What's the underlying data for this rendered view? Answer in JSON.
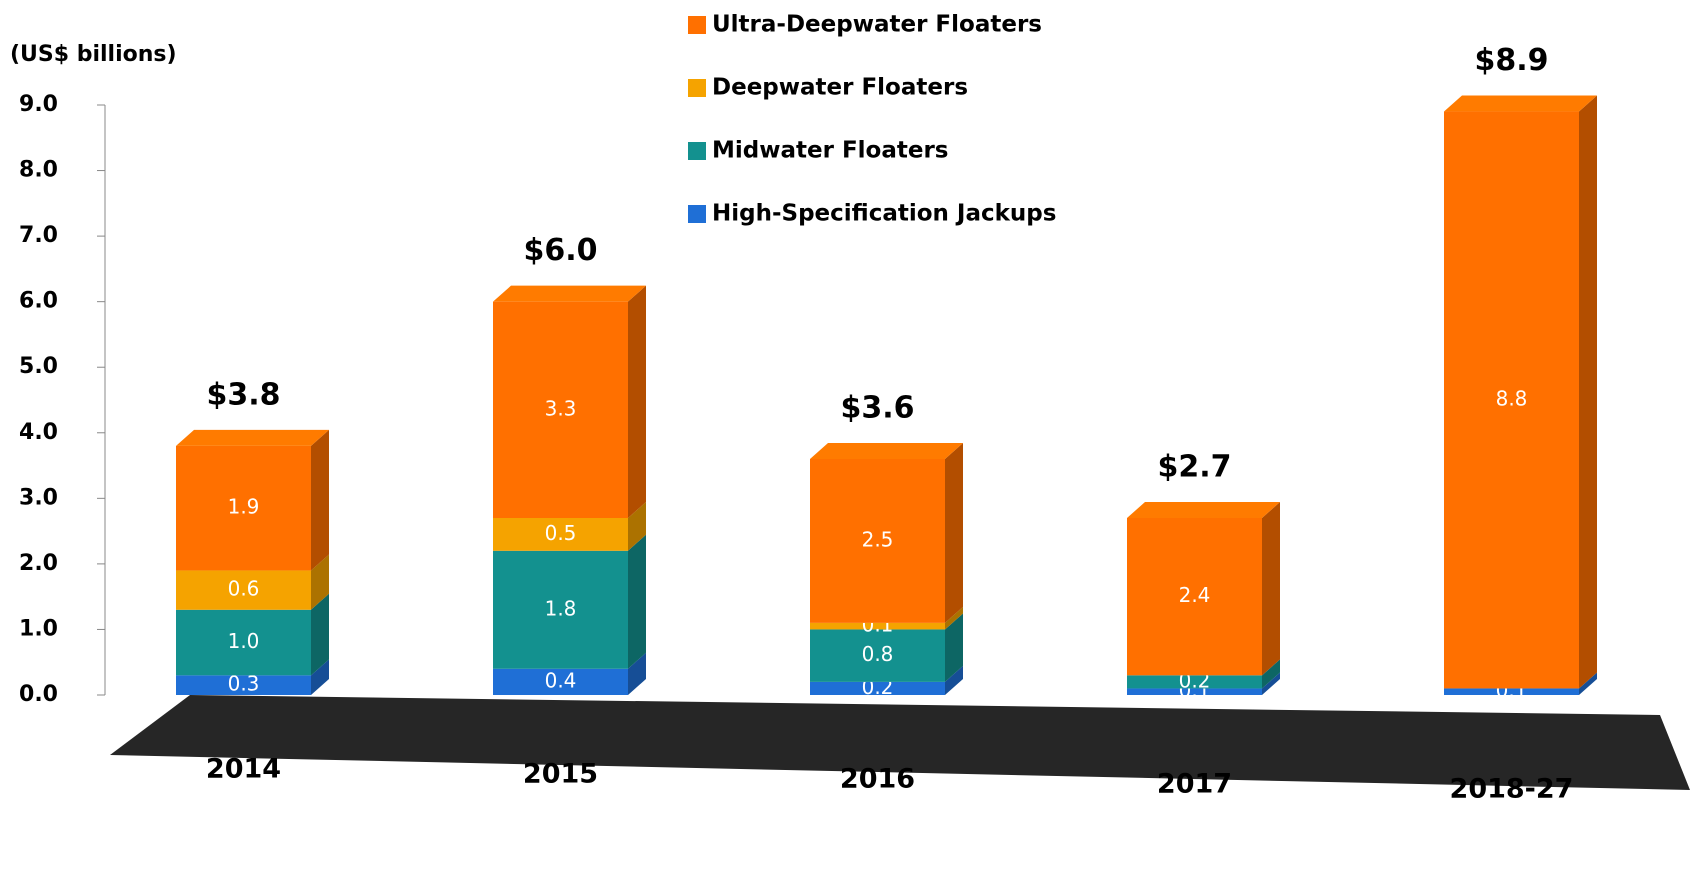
{
  "chart_data": {
    "type": "stacked-bar",
    "y_label": "(US$ billions)",
    "categories": [
      "2014",
      "2015",
      "2016",
      "2017",
      "2018-27"
    ],
    "series": [
      {
        "name": "High-Specification Jackups",
        "color": "#1f6fd6",
        "values": [
          0.3,
          0.4,
          0.2,
          0.1,
          0.1
        ],
        "value_labels": [
          "0.3",
          "0.4",
          "0.2",
          "0.1",
          "0.1"
        ]
      },
      {
        "name": "Midwater Floaters",
        "color": "#13918f",
        "values": [
          1.0,
          1.8,
          0.8,
          0.2,
          null
        ],
        "value_labels": [
          "1.0",
          "1.8",
          "0.8",
          "0.2",
          null
        ]
      },
      {
        "name": "Deepwater Floaters",
        "color": "#f5a300",
        "values": [
          0.6,
          0.5,
          0.1,
          null,
          null
        ],
        "value_labels": [
          "0.6",
          "0.5",
          "0.1",
          null,
          null
        ]
      },
      {
        "name": "Ultra-Deepwater Floaters",
        "color": "#ff7000",
        "values": [
          1.9,
          3.3,
          2.5,
          2.4,
          8.8
        ],
        "value_labels": [
          "1.9",
          "3.3",
          "2.5",
          "2.4",
          "8.8"
        ]
      }
    ],
    "totals": [
      3.8,
      6.0,
      3.6,
      2.7,
      8.9
    ],
    "total_labels": [
      "$3.8",
      "$6.0",
      "$3.6",
      "$2.7",
      "$8.9"
    ],
    "ylim": [
      0,
      9
    ],
    "yticks": [
      {
        "value": 0,
        "label": "0.0"
      },
      {
        "value": 1,
        "label": "1.0"
      },
      {
        "value": 2,
        "label": "2.0"
      },
      {
        "value": 3,
        "label": "3.0"
      },
      {
        "value": 4,
        "label": "4.0"
      },
      {
        "value": 5,
        "label": "5.0"
      },
      {
        "value": 6,
        "label": "6.0"
      },
      {
        "value": 7,
        "label": "7.0"
      },
      {
        "value": 8,
        "label": "8.0"
      },
      {
        "value": 9,
        "label": "9.0"
      }
    ],
    "legend_position": "top"
  }
}
